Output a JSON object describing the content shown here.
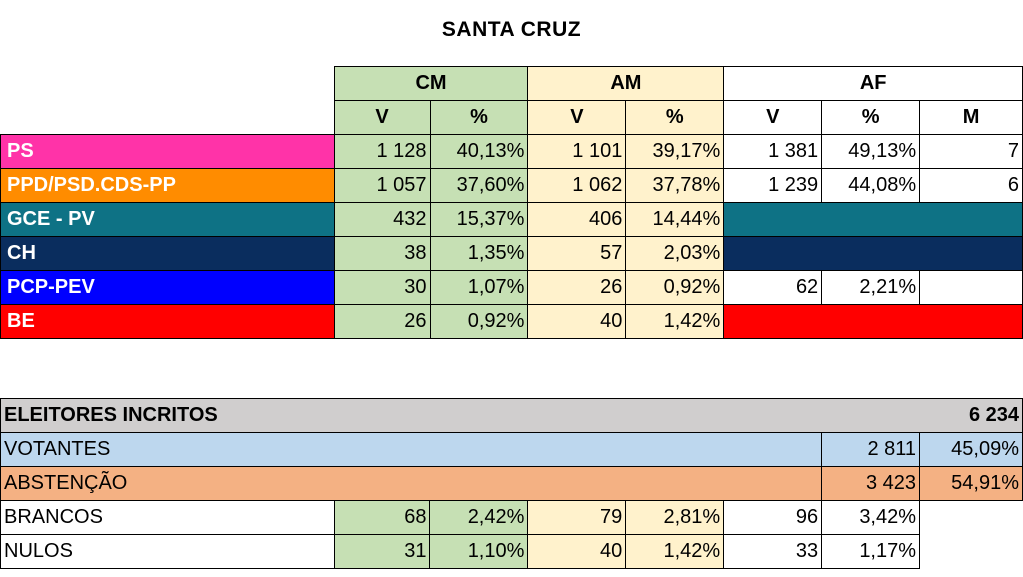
{
  "title": "SANTA CRUZ",
  "groups": {
    "cm": "CM",
    "am": "AM",
    "af": "AF"
  },
  "cols": {
    "v": "V",
    "pct": "%",
    "m": "M"
  },
  "colors": {
    "cm": "#c6e0b4",
    "am": "#fff2cc"
  },
  "parties": [
    {
      "name": "PS",
      "color": "#ff33a8",
      "cm_v": "1 128",
      "cm_p": "40,13%",
      "am_v": "1 101",
      "am_p": "39,17%",
      "af_v": "1 381",
      "af_p": "49,13%",
      "af_m": "7"
    },
    {
      "name": "PPD/PSD.CDS-PP",
      "color": "#ff8c00",
      "cm_v": "1 057",
      "cm_p": "37,60%",
      "am_v": "1 062",
      "am_p": "37,78%",
      "af_v": "1 239",
      "af_p": "44,08%",
      "af_m": "6"
    },
    {
      "name": "GCE - PV",
      "color": "#0e7285",
      "cm_v": "432",
      "cm_p": "15,37%",
      "am_v": "406",
      "am_p": "14,44%",
      "af_fill": "#0e7285"
    },
    {
      "name": "CH",
      "color": "#0a2d5e",
      "cm_v": "38",
      "cm_p": "1,35%",
      "am_v": "57",
      "am_p": "2,03%",
      "af_fill": "#0a2d5e"
    },
    {
      "name": "PCP-PEV",
      "color": "#0000ff",
      "cm_v": "30",
      "cm_p": "1,07%",
      "am_v": "26",
      "am_p": "0,92%",
      "af_v": "62",
      "af_p": "2,21%",
      "af_m": ""
    },
    {
      "name": "BE",
      "color": "#ff0000",
      "cm_v": "26",
      "cm_p": "0,92%",
      "am_v": "40",
      "am_p": "1,42%",
      "af_fill": "#ff0000"
    }
  ],
  "summary": {
    "eleitores": {
      "label": "ELEITORES INCRITOS",
      "value": "6 234"
    },
    "votantes": {
      "label": "VOTANTES",
      "value": "2 811",
      "pct": "45,09%"
    },
    "abstencao": {
      "label": "ABSTENÇÃO",
      "value": "3 423",
      "pct": "54,91%"
    },
    "brancos": {
      "label": "BRANCOS",
      "cm_v": "68",
      "cm_p": "2,42%",
      "am_v": "79",
      "am_p": "2,81%",
      "af_v": "96",
      "af_p": "3,42%"
    },
    "nulos": {
      "label": "NULOS",
      "cm_v": "31",
      "cm_p": "1,10%",
      "am_v": "40",
      "am_p": "1,42%",
      "af_v": "33",
      "af_p": "1,17%"
    }
  }
}
